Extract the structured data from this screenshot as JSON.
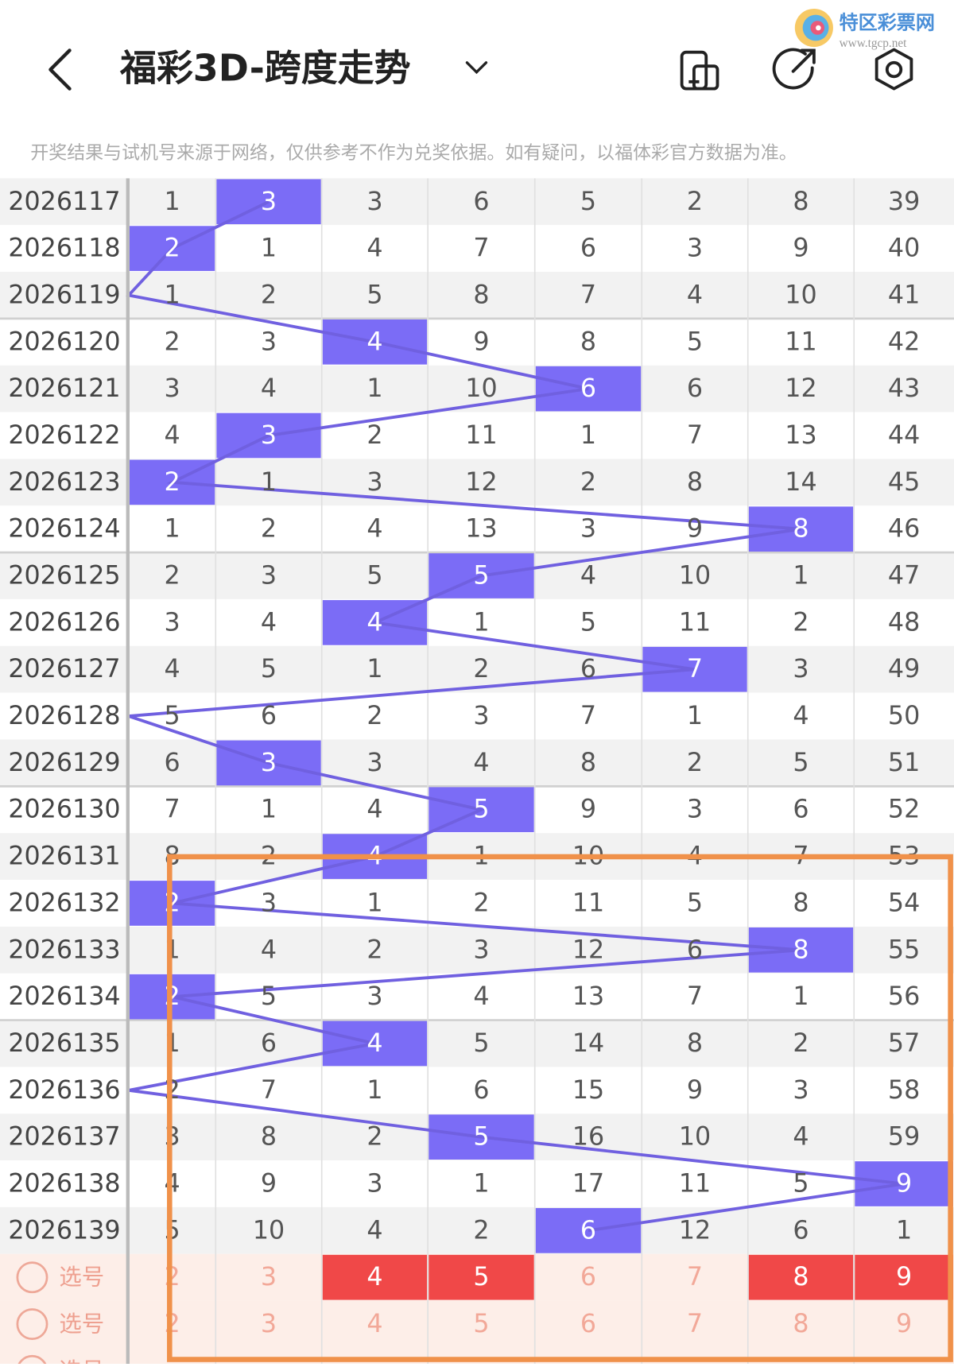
{
  "header": {
    "title": "福彩3D-跨度走势",
    "watermark": "特区彩票网",
    "watermark_url": "www.tgcp.net"
  },
  "notice": "开奖结果与试机号来源于网络，仅供参考不作为兑奖依据。如有疑问，以福体彩官方数据为准。",
  "table": {
    "rows": [
      {
        "issue": "2026117",
        "cells": [
          1,
          3,
          3,
          6,
          5,
          2,
          8,
          39
        ],
        "hit": 1
      },
      {
        "issue": "2026118",
        "cells": [
          2,
          1,
          4,
          7,
          6,
          3,
          9,
          40
        ],
        "hit": 0
      },
      {
        "issue": "2026119",
        "cells": [
          1,
          2,
          5,
          8,
          7,
          4,
          10,
          41
        ],
        "hit": null
      },
      {
        "issue": "2026120",
        "cells": [
          2,
          3,
          4,
          9,
          8,
          5,
          11,
          42
        ],
        "hit": 2
      },
      {
        "issue": "2026121",
        "cells": [
          3,
          4,
          1,
          10,
          6,
          6,
          12,
          43
        ],
        "hit": 4
      },
      {
        "issue": "2026122",
        "cells": [
          4,
          3,
          2,
          11,
          1,
          7,
          13,
          44
        ],
        "hit": 1
      },
      {
        "issue": "2026123",
        "cells": [
          2,
          1,
          3,
          12,
          2,
          8,
          14,
          45
        ],
        "hit": 0
      },
      {
        "issue": "2026124",
        "cells": [
          1,
          2,
          4,
          13,
          3,
          9,
          8,
          46
        ],
        "hit": 6
      },
      {
        "issue": "2026125",
        "cells": [
          2,
          3,
          5,
          5,
          4,
          10,
          1,
          47
        ],
        "hit": 3
      },
      {
        "issue": "2026126",
        "cells": [
          3,
          4,
          4,
          1,
          5,
          11,
          2,
          48
        ],
        "hit": 2
      },
      {
        "issue": "2026127",
        "cells": [
          4,
          5,
          1,
          2,
          6,
          7,
          3,
          49
        ],
        "hit": 5
      },
      {
        "issue": "2026128",
        "cells": [
          5,
          6,
          2,
          3,
          7,
          1,
          4,
          50
        ],
        "hit": null
      },
      {
        "issue": "2026129",
        "cells": [
          6,
          3,
          3,
          4,
          8,
          2,
          5,
          51
        ],
        "hit": 1
      },
      {
        "issue": "2026130",
        "cells": [
          7,
          1,
          4,
          5,
          9,
          3,
          6,
          52
        ],
        "hit": 3
      },
      {
        "issue": "2026131",
        "cells": [
          8,
          2,
          4,
          1,
          10,
          4,
          7,
          53
        ],
        "hit": 2
      },
      {
        "issue": "2026132",
        "cells": [
          2,
          3,
          1,
          2,
          11,
          5,
          8,
          54
        ],
        "hit": 0
      },
      {
        "issue": "2026133",
        "cells": [
          1,
          4,
          2,
          3,
          12,
          6,
          8,
          55
        ],
        "hit": 6
      },
      {
        "issue": "2026134",
        "cells": [
          2,
          5,
          3,
          4,
          13,
          7,
          1,
          56
        ],
        "hit": 0
      },
      {
        "issue": "2026135",
        "cells": [
          1,
          6,
          4,
          5,
          14,
          8,
          2,
          57
        ],
        "hit": 2
      },
      {
        "issue": "2026136",
        "cells": [
          2,
          7,
          1,
          6,
          15,
          9,
          3,
          58
        ],
        "hit": null
      },
      {
        "issue": "2026137",
        "cells": [
          3,
          8,
          2,
          5,
          16,
          10,
          4,
          59
        ],
        "hit": 3
      },
      {
        "issue": "2026138",
        "cells": [
          4,
          9,
          3,
          1,
          17,
          11,
          5,
          9
        ],
        "hit": 7
      },
      {
        "issue": "2026139",
        "cells": [
          5,
          10,
          4,
          2,
          6,
          12,
          6,
          1
        ],
        "hit": 4
      }
    ],
    "pick_rows": [
      {
        "label": "选号",
        "cells": [
          2,
          3,
          4,
          5,
          6,
          7,
          8,
          9
        ],
        "selected": [
          false,
          false,
          true,
          true,
          false,
          false,
          true,
          true
        ]
      },
      {
        "label": "选号",
        "cells": [
          2,
          3,
          4,
          5,
          6,
          7,
          8,
          9
        ],
        "selected": [
          false,
          false,
          false,
          false,
          false,
          false,
          false,
          false
        ]
      },
      {
        "label": "选号"
      }
    ]
  }
}
